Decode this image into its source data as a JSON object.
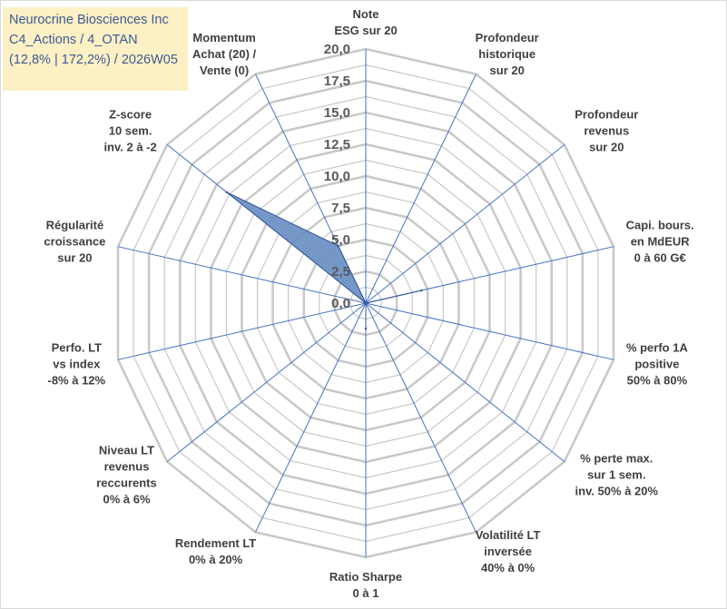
{
  "title": {
    "line1": "Neurocrine Biosciences Inc",
    "line2": "C4_Actions / 4_OTAN",
    "line3": "(12,8% | 172,2%) / 2026W05"
  },
  "chart_data": {
    "type": "radar",
    "rmin": 0,
    "rmax": 20,
    "ticks": [
      {
        "value": 0,
        "label": "0,0"
      },
      {
        "value": 2.5,
        "label": "2,5"
      },
      {
        "value": 5,
        "label": "5,0"
      },
      {
        "value": 7.5,
        "label": "7,5"
      },
      {
        "value": 10,
        "label": "10,0"
      },
      {
        "value": 12.5,
        "label": "12,5"
      },
      {
        "value": 15,
        "label": "15,0"
      },
      {
        "value": 17.5,
        "label": "17,5"
      },
      {
        "value": 20,
        "label": "20,0"
      }
    ],
    "categories": [
      {
        "lines": [
          "Note",
          "ESG sur 20"
        ]
      },
      {
        "lines": [
          "Profondeur",
          "historique",
          "sur 20"
        ]
      },
      {
        "lines": [
          "Profondeur",
          "revenus",
          "sur 20"
        ]
      },
      {
        "lines": [
          "Capi. bours.",
          "en MdEUR",
          "0 à 60 G€"
        ]
      },
      {
        "lines": [
          "% perfo 1A",
          "positive",
          "50% à 80%"
        ]
      },
      {
        "lines": [
          "% perte max.",
          "sur 1 sem.",
          "inv. 50% à 20%"
        ]
      },
      {
        "lines": [
          "Volatilité LT",
          "inversée",
          "40% à 0%"
        ]
      },
      {
        "lines": [
          "Ratio Sharpe",
          "0 à 1"
        ]
      },
      {
        "lines": [
          "Rendement LT",
          "0% à 20%"
        ]
      },
      {
        "lines": [
          "Niveau LT",
          "revenus",
          "reccurents",
          "0% à 6%"
        ]
      },
      {
        "lines": [
          "Perfo. LT",
          "vs index",
          "-8% à 12%"
        ]
      },
      {
        "lines": [
          "Régularité",
          "croissance",
          "sur 20"
        ]
      },
      {
        "lines": [
          "Z-score",
          "10 sem.",
          "inv. 2 à -2"
        ]
      },
      {
        "lines": [
          "Momentum",
          "Achat (20) /",
          "Vente (0)"
        ]
      }
    ],
    "series": [
      {
        "name": "Neurocrine Biosciences Inc",
        "values": [
          0,
          0,
          0,
          4.5,
          0,
          0,
          0,
          2.0,
          0,
          0,
          0,
          0,
          14.0,
          5.0
        ]
      }
    ],
    "colors": {
      "grid": "#c8c8c8",
      "spoke": "#4472c4",
      "fill": "#6a8fc4",
      "stroke": "#2f5597"
    }
  }
}
